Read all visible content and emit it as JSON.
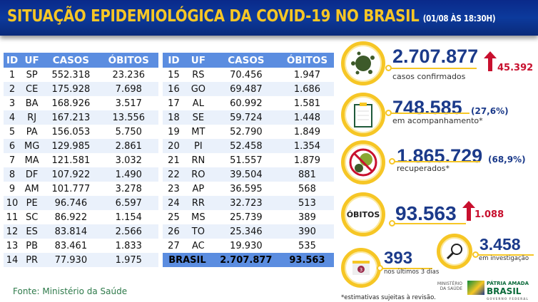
{
  "header": {
    "title": "SITUAÇÃO EPIDEMIOLÓGICA DA COVID-19 NO BRASIL",
    "datetime": "(01/08 ÀS 18:30H)"
  },
  "table": {
    "columns": [
      "ID",
      "UF",
      "CASOS",
      "ÓBITOS"
    ],
    "rows_left": [
      [
        "1",
        "SP",
        "552.318",
        "23.236"
      ],
      [
        "2",
        "CE",
        "175.928",
        "7.698"
      ],
      [
        "3",
        "BA",
        "168.926",
        "3.517"
      ],
      [
        "4",
        "RJ",
        "167.213",
        "13.556"
      ],
      [
        "5",
        "PA",
        "156.053",
        "5.750"
      ],
      [
        "6",
        "MG",
        "129.985",
        "2.861"
      ],
      [
        "7",
        "MA",
        "121.581",
        "3.032"
      ],
      [
        "8",
        "DF",
        "107.922",
        "1.490"
      ],
      [
        "9",
        "AM",
        "101.777",
        "3.278"
      ],
      [
        "10",
        "PE",
        "96.746",
        "6.597"
      ],
      [
        "11",
        "SC",
        "86.922",
        "1.154"
      ],
      [
        "12",
        "ES",
        "83.814",
        "2.566"
      ],
      [
        "13",
        "PB",
        "83.461",
        "1.833"
      ],
      [
        "14",
        "PR",
        "77.930",
        "1.975"
      ]
    ],
    "rows_right": [
      [
        "15",
        "RS",
        "70.456",
        "1.947"
      ],
      [
        "16",
        "GO",
        "69.487",
        "1.686"
      ],
      [
        "17",
        "AL",
        "60.992",
        "1.581"
      ],
      [
        "18",
        "SE",
        "59.724",
        "1.448"
      ],
      [
        "19",
        "MT",
        "52.790",
        "1.849"
      ],
      [
        "20",
        "PI",
        "52.458",
        "1.354"
      ],
      [
        "21",
        "RN",
        "51.557",
        "1.879"
      ],
      [
        "22",
        "RO",
        "39.504",
        "881"
      ],
      [
        "23",
        "AP",
        "36.595",
        "568"
      ],
      [
        "24",
        "RR",
        "32.723",
        "513"
      ],
      [
        "25",
        "MS",
        "25.739",
        "389"
      ],
      [
        "26",
        "TO",
        "25.346",
        "390"
      ],
      [
        "27",
        "AC",
        "19.930",
        "535"
      ]
    ],
    "total": {
      "label": "BRASIL",
      "casos": "2.707.877",
      "obitos": "93.563"
    }
  },
  "source": "Fonte: Ministério da Saúde",
  "stats": {
    "confirmed": {
      "value": "2.707.877",
      "label": "casos confirmados",
      "increase": "45.392",
      "icon": "virus-icon"
    },
    "monitoring": {
      "value": "748.585",
      "pct": "(27,6%)",
      "label": "em acompanhamento*",
      "icon": "clipboard-icon"
    },
    "recovered": {
      "value": "1.865.729",
      "pct": "(68,9%)",
      "label": "recuperados*",
      "icon": "crossed-virus-icon"
    },
    "deaths": {
      "badge": "ÓBITOS",
      "value": "93.563",
      "increase": "1.088"
    },
    "investigation": {
      "value": "3.458",
      "label": "em investigação",
      "icon": "magnifier-icon"
    },
    "last3": {
      "value": "393",
      "label": "nos últimos 3 dias",
      "icon": "calendar-icon",
      "cal_num": "3"
    }
  },
  "footnote": "*estimativas sujeitas à revisão.",
  "logos": {
    "ministry": "MINISTÉRIO DA SAÚDE",
    "brand_top": "PÁTRIA AMADA",
    "brand_main": "BRASIL",
    "brand_sub": "GOVERNO FEDERAL"
  },
  "colors": {
    "header": "#0c3a9c",
    "title": "#f6c625",
    "accent": "#1b3a8a",
    "up": "#c8102e",
    "table_header": "#5b8de0"
  }
}
